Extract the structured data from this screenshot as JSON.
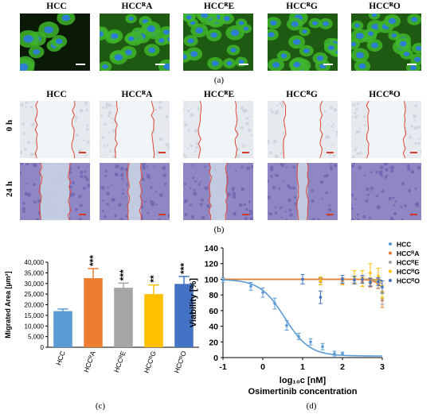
{
  "panel_a": {
    "caption": "(a)",
    "labels": [
      "HCC",
      "HCCᴿA",
      "HCCᴿE",
      "HCCᴿG",
      "HCCᴿO"
    ]
  },
  "panel_b": {
    "caption": "(b)",
    "labels": [
      "HCC",
      "HCCᴿA",
      "HCCᴿE",
      "HCCᴿG",
      "HCCᴿO"
    ],
    "row_labels": [
      "0 h",
      "24 h"
    ]
  },
  "panel_c": {
    "caption": "(c)"
  },
  "panel_d": {
    "caption": "(d)"
  },
  "chart_data": [
    {
      "type": "bar",
      "ylabel": "Migrated Area [µm²]",
      "ylim": [
        0,
        40000
      ],
      "yticks": [
        "0",
        "5,000",
        "10,000",
        "15,000",
        "20,000",
        "25,000",
        "30,000",
        "35,000",
        "40,000"
      ],
      "categories": [
        "HCC",
        "HCCᴿA",
        "HCCᴿE",
        "HCCᴿG",
        "HCCᴿO"
      ],
      "values": [
        17000,
        32500,
        28000,
        25000,
        29800
      ],
      "errors": [
        1000,
        4500,
        2200,
        4300,
        3500
      ],
      "significance": [
        "",
        "***",
        "***",
        "**",
        "***"
      ],
      "colors": [
        "#5b9bd5",
        "#ed7d31",
        "#a5a5a5",
        "#ffc000",
        "#4472c4"
      ]
    },
    {
      "type": "scatter",
      "xlabel": "log₁₀c [nM]",
      "xlabel2": "Osimertinib concentration",
      "ylabel": "Viability [%]",
      "xlim": [
        -1,
        3
      ],
      "ylim": [
        0,
        140
      ],
      "xticks": [
        "-1",
        "0",
        "1",
        "2",
        "3"
      ],
      "yticks": [
        "0",
        "20",
        "40",
        "60",
        "80",
        "100",
        "120",
        "140"
      ],
      "series": [
        {
          "name": "HCC",
          "color": "#5b9bd5",
          "marker": "dot",
          "x": [
            -1,
            -0.3,
            0,
            0.3,
            0.6,
            0.9,
            1.2,
            1.5,
            1.8,
            2.0
          ],
          "y": [
            99,
            91,
            83,
            69,
            41,
            27,
            20,
            14,
            5,
            5
          ],
          "yerr": [
            3,
            5,
            6,
            7,
            6,
            4,
            4,
            4,
            3,
            2
          ],
          "fit_ic50": 0.55,
          "fit_hill": 1.4,
          "fit_top": 100,
          "fit_bottom": 2
        },
        {
          "name": "HCCᴿA",
          "color": "#ed7d31",
          "marker": "dot",
          "x": [
            1.45,
            2.0,
            2.3,
            2.5,
            2.7,
            2.9,
            3.0
          ],
          "y": [
            97,
            98,
            99,
            97,
            95,
            94,
            73
          ],
          "yerr": [
            4,
            4,
            5,
            6,
            5,
            6,
            9
          ],
          "fit_ic50": 3.3,
          "fit_hill": 3.0,
          "fit_top": 100,
          "fit_bottom": 0
        },
        {
          "name": "HCCᴿE",
          "color": "#a5a5a5",
          "marker": "dot",
          "x": [
            1.45,
            2.0,
            2.3,
            2.5,
            2.7,
            2.9,
            3.0
          ],
          "y": [
            99,
            101,
            100,
            100,
            97,
            95,
            76
          ],
          "yerr": [
            3,
            4,
            4,
            5,
            5,
            6,
            8
          ],
          "fit_ic50": 3.4,
          "fit_hill": 3.0,
          "fit_top": 100,
          "fit_bottom": 0
        },
        {
          "name": "HCCᴿG",
          "color": "#ffc000",
          "marker": "dot",
          "x": [
            1.45,
            2.0,
            2.3,
            2.5,
            2.7,
            2.9,
            3.0
          ],
          "y": [
            98,
            99,
            103,
            101,
            108,
            104,
            84
          ],
          "yerr": [
            5,
            6,
            8,
            10,
            12,
            10,
            8
          ],
          "fit_ic50": 3.5,
          "fit_hill": 3.0,
          "fit_top": 100,
          "fit_bottom": 0
        },
        {
          "name": "HCCᴿO",
          "color": "#4472c4",
          "marker": "dot",
          "x": [
            1.0,
            1.45,
            2.0,
            2.3,
            2.5,
            2.7,
            2.9,
            3.0
          ],
          "y": [
            100,
            77,
            100,
            99,
            100,
            96,
            97,
            90
          ],
          "yerr": [
            6,
            8,
            5,
            5,
            5,
            5,
            5,
            8
          ],
          "fit_ic50": 3.6,
          "fit_hill": 3.0,
          "fit_top": 100,
          "fit_bottom": 0
        }
      ],
      "legend_position": "top-right"
    }
  ]
}
